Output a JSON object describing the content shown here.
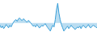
{
  "chart_data": {
    "type": "line",
    "values": [
      -1.5,
      -3.0,
      -2.0,
      -3.5,
      -2.5,
      -1.0,
      -2.0,
      -3.0,
      -1.5,
      -2.5,
      -1.0,
      0.5,
      1.5,
      2.0,
      1.0,
      2.5,
      3.0,
      2.0,
      1.5,
      2.5,
      2.0,
      1.0,
      0.5,
      1.5,
      1.0,
      0.0,
      -1.0,
      -2.0,
      -1.5,
      -2.5,
      -1.0,
      -2.0,
      -3.0,
      -2.5,
      -1.5,
      -2.0,
      -1.0,
      -0.5,
      -2.0,
      -3.0,
      -4.0,
      -5.0,
      -3.0,
      -1.5,
      -2.5,
      2.0,
      8.0,
      12.0,
      6.0,
      2.0,
      -1.0,
      -3.0,
      -5.0,
      -4.0,
      -3.0,
      -2.0,
      -3.5,
      -2.5,
      -1.5,
      -2.5,
      -3.0,
      -4.0,
      -3.5,
      -2.5,
      -3.0,
      -2.0,
      -3.5,
      -2.0,
      -1.5,
      -2.5,
      -3.0,
      -2.0,
      -1.0,
      -2.5,
      -3.0,
      -2.0,
      -1.5,
      -2.0,
      -2.5,
      -3.0
    ],
    "color": "#3a9fd8",
    "ylim": [
      -8,
      14
    ],
    "grid": false,
    "tick_labels": false
  }
}
